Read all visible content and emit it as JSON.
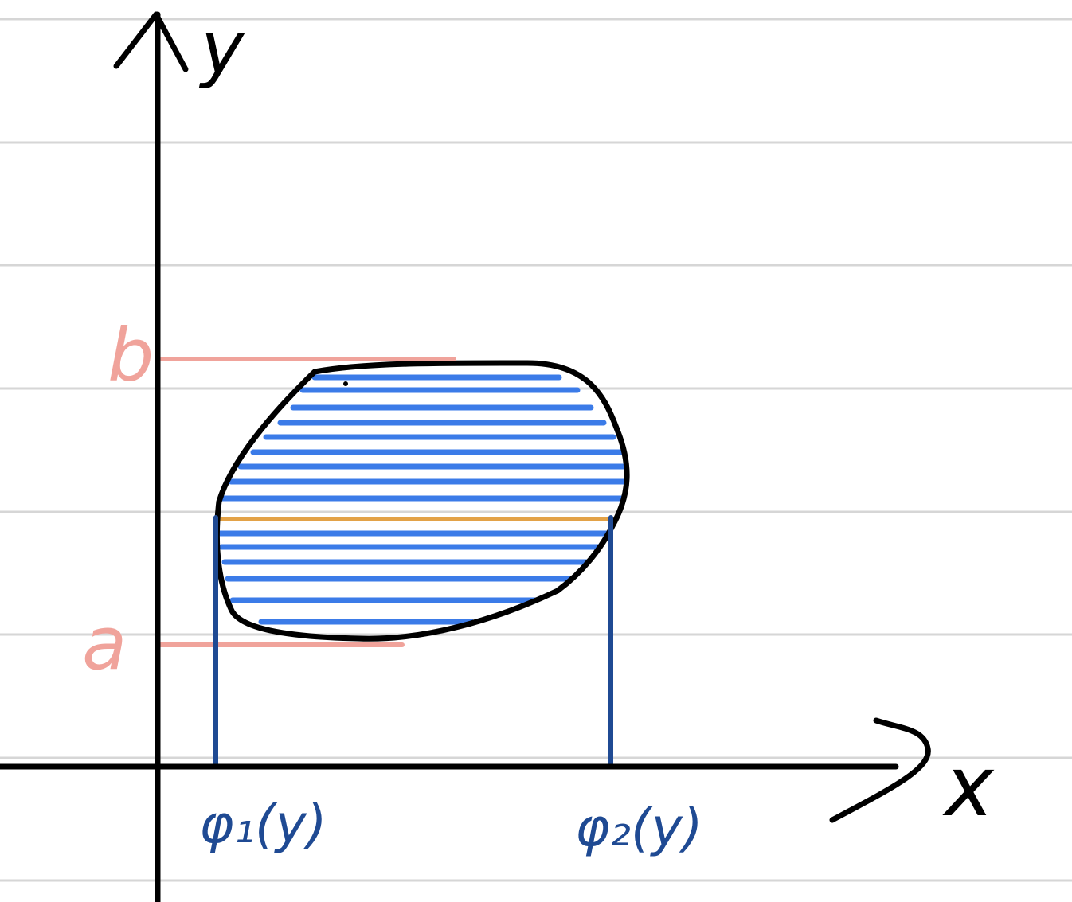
{
  "labels": {
    "y_axis": "y",
    "x_axis": "x",
    "upper_bound": "b",
    "lower_bound": "a",
    "left_boundary": "φ₁(y)",
    "right_boundary": "φ₂(y)"
  },
  "colors": {
    "paper": "#ffffff",
    "ruled_line": "#d6d6d6",
    "ink": "#000000",
    "bound_line": "#f0a39b",
    "hatch": "#3b7be8",
    "highlight_strip": "#e3a247",
    "boundary_line": "#1f4a93"
  },
  "icons": {
    "y_arrowhead": "arrowhead-up-icon",
    "x_arrowhead": "arrowhead-right-icon"
  }
}
